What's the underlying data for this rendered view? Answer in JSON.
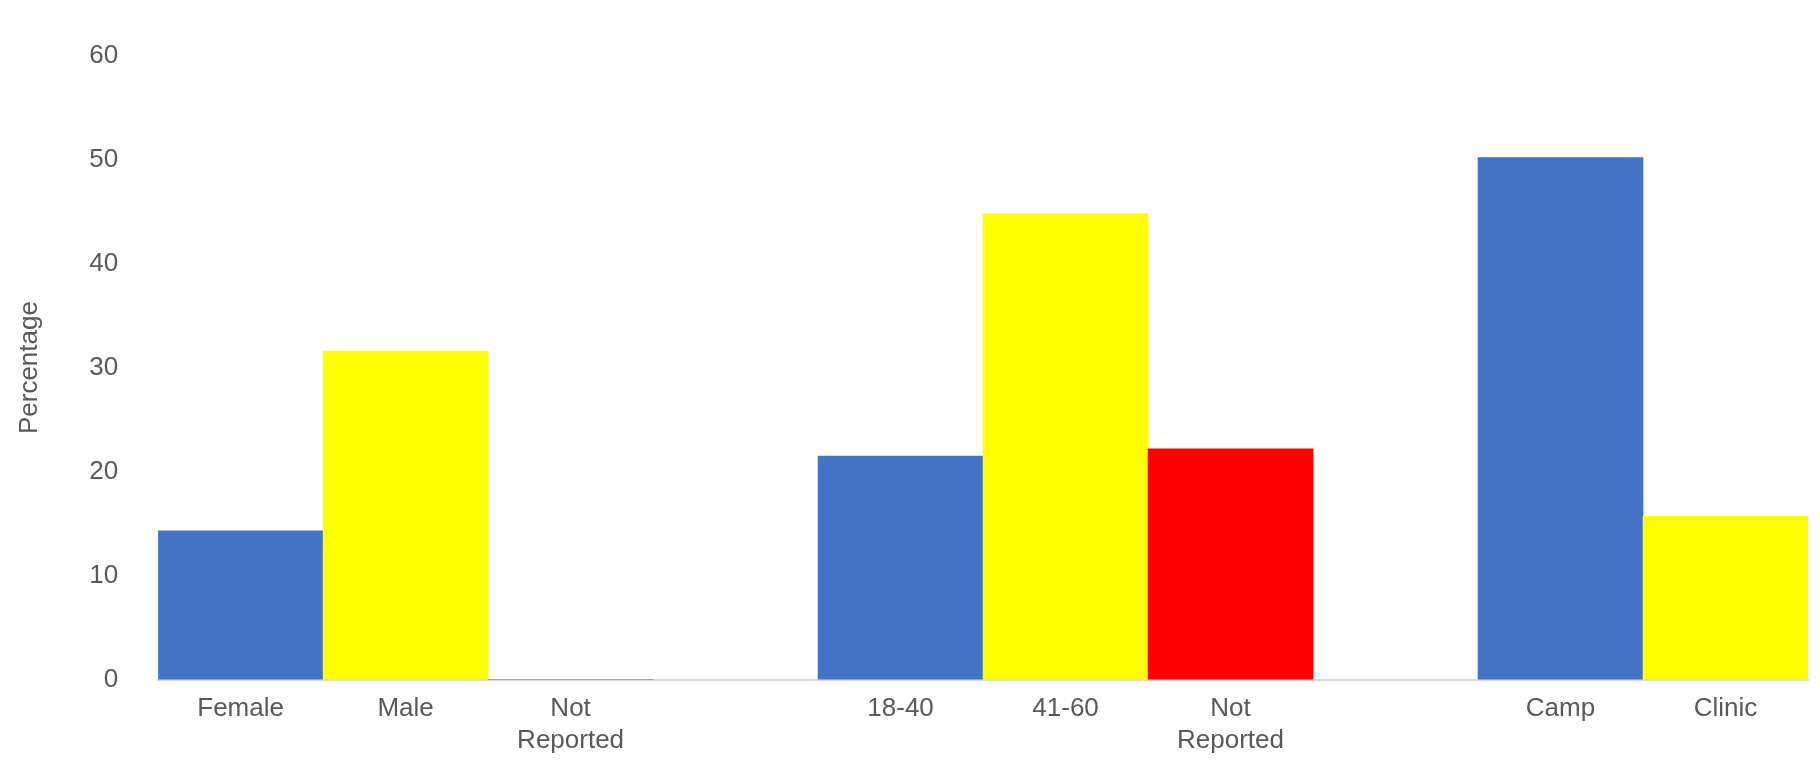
{
  "chart_data": {
    "type": "bar",
    "ylabel": "Percentage",
    "categories": [
      "Female",
      "Male",
      "Not Reported",
      null,
      "18-40",
      "41-60",
      "Not Reported",
      null,
      "Camp",
      "Clinic"
    ],
    "values": [
      14.3,
      31.6,
      0,
      null,
      21.5,
      44.8,
      22.2,
      null,
      50.2,
      15.7
    ],
    "colors": [
      "#4472c4",
      "#ffff00",
      "#ff0000",
      null,
      "#4472c4",
      "#ffff00",
      "#ff0000",
      null,
      "#4472c4",
      "#ffff00"
    ],
    "ylim": [
      0,
      60
    ],
    "yticks": [
      0,
      10,
      20,
      30,
      40,
      50,
      60
    ],
    "grid": false,
    "legend": false
  }
}
